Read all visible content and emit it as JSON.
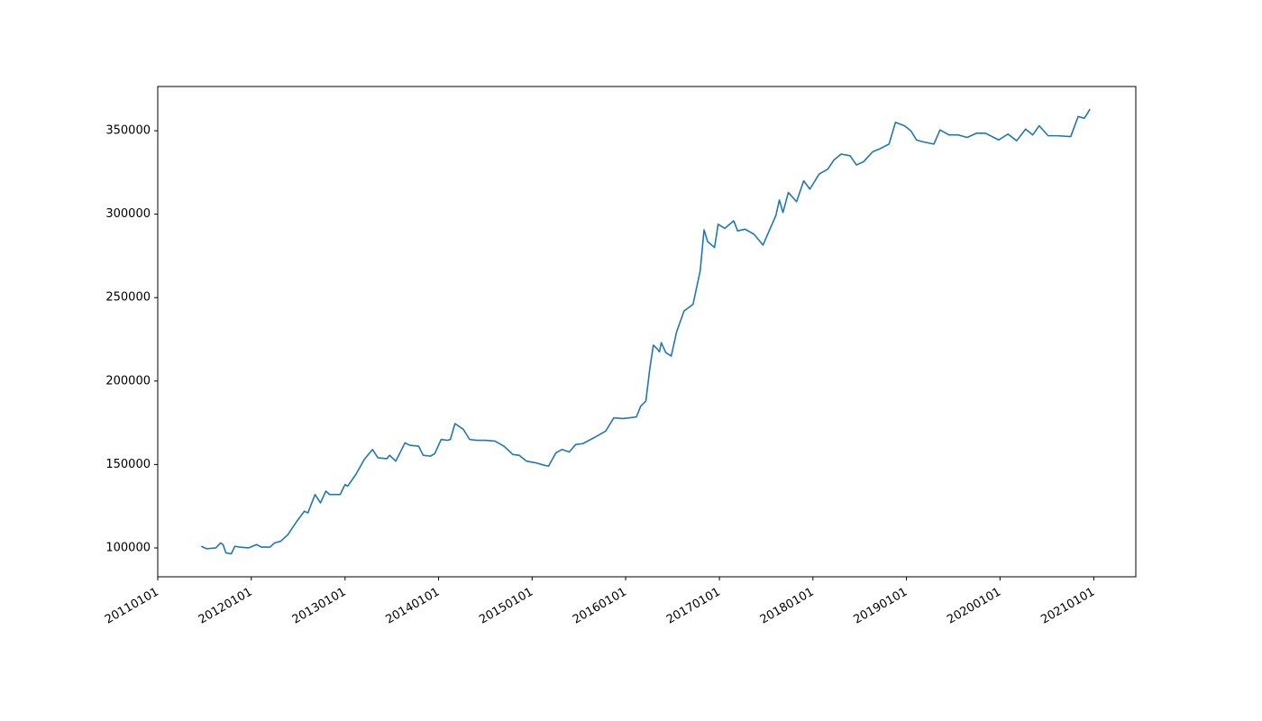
{
  "chart_data": {
    "type": "line",
    "x": [
      "2011-06-20",
      "2011-07-11",
      "2011-08-16",
      "2011-09-03",
      "2011-09-13",
      "2011-09-24",
      "2011-10-15",
      "2011-10-29",
      "2011-11-16",
      "2011-12-21",
      "2012-01-22",
      "2012-02-09",
      "2012-03-14",
      "2012-04-01",
      "2012-04-25",
      "2012-05-23",
      "2012-06-27",
      "2012-07-26",
      "2012-08-09",
      "2012-09-06",
      "2012-09-27",
      "2012-10-18",
      "2012-11-02",
      "2012-12-13",
      "2013-01-01",
      "2013-01-11",
      "2013-02-12",
      "2013-03-17",
      "2013-04-18",
      "2013-05-09",
      "2013-06-13",
      "2013-06-24",
      "2013-07-18",
      "2013-08-23",
      "2013-09-10",
      "2013-10-15",
      "2013-11-02",
      "2013-11-30",
      "2013-12-17",
      "2014-01-11",
      "2014-02-05",
      "2014-02-16",
      "2014-03-06",
      "2014-04-08",
      "2014-05-02",
      "2014-05-30",
      "2014-07-04",
      "2014-08-09",
      "2014-09-13",
      "2014-10-18",
      "2014-11-12",
      "2014-12-10",
      "2015-01-15",
      "2015-02-19",
      "2015-03-06",
      "2015-04-04",
      "2015-04-28",
      "2015-05-26",
      "2015-06-20",
      "2015-07-18",
      "2015-08-30",
      "2015-10-15",
      "2015-11-16",
      "2015-12-20",
      "2016-01-18",
      "2016-02-12",
      "2016-02-29",
      "2016-03-20",
      "2016-04-04",
      "2016-04-18",
      "2016-05-02",
      "2016-05-12",
      "2016-05-19",
      "2016-06-06",
      "2016-06-27",
      "2016-07-18",
      "2016-08-16",
      "2016-09-20",
      "2016-10-18",
      "2016-11-02",
      "2016-11-16",
      "2016-12-13",
      "2016-12-27",
      "2017-01-22",
      "2017-02-26",
      "2017-03-13",
      "2017-04-11",
      "2017-05-16",
      "2017-06-20",
      "2017-07-14",
      "2017-08-09",
      "2017-08-23",
      "2017-09-06",
      "2017-09-27",
      "2017-10-29",
      "2017-11-26",
      "2017-12-20",
      "2018-01-25",
      "2018-02-28",
      "2018-03-24",
      "2018-04-21",
      "2018-05-26",
      "2018-06-20",
      "2018-07-18",
      "2018-08-23",
      "2018-09-17",
      "2018-10-25",
      "2018-11-19",
      "2018-12-24",
      "2019-01-18",
      "2019-02-09",
      "2019-03-03",
      "2019-04-18",
      "2019-05-12",
      "2019-06-16",
      "2019-07-21",
      "2019-08-26",
      "2019-10-01",
      "2019-11-05",
      "2019-12-27",
      "2020-02-01",
      "2020-03-06",
      "2020-04-10",
      "2020-05-08",
      "2020-06-02",
      "2020-07-07",
      "2020-08-12",
      "2020-10-03",
      "2020-11-01",
      "2020-11-25",
      "2020-12-06",
      "2020-12-17"
    ],
    "series": [
      {
        "color": "#1f77b4",
        "values": [
          101000,
          99500,
          100000,
          103000,
          102000,
          97000,
          96500,
          101000,
          100500,
          100000,
          102000,
          100500,
          100500,
          103000,
          104000,
          108000,
          116000,
          122000,
          121000,
          132000,
          127000,
          134000,
          132000,
          132000,
          138000,
          137000,
          144000,
          153000,
          159000,
          154000,
          153500,
          155500,
          152000,
          163000,
          161500,
          161000,
          155500,
          155000,
          156500,
          165000,
          164500,
          165000,
          174500,
          171000,
          165000,
          164500,
          164500,
          164000,
          161000,
          156000,
          155500,
          152000,
          151000,
          149500,
          149000,
          157000,
          159000,
          157500,
          162000,
          162500,
          166000,
          170000,
          178000,
          177500,
          178000,
          178500,
          185000,
          188000,
          207000,
          221500,
          219500,
          217500,
          223000,
          217000,
          215000,
          229500,
          242000,
          246000,
          266000,
          290600,
          283600,
          280000,
          294000,
          291500,
          296000,
          290000,
          291000,
          288000,
          281500,
          290000,
          299000,
          308500,
          301000,
          313000,
          307500,
          320000,
          315000,
          324000,
          327000,
          332500,
          336000,
          335000,
          329500,
          331500,
          337500,
          339000,
          342000,
          355000,
          353000,
          350000,
          344500,
          343500,
          342000,
          350500,
          347500,
          347500,
          346000,
          348500,
          348500,
          344500,
          348000,
          344000,
          351000,
          347500,
          353000,
          347000,
          347000,
          346500,
          358500,
          357500,
          360000,
          363000
        ]
      }
    ],
    "xlim": [
      "2011-01-01",
      "2021-06-14"
    ],
    "xticks": [
      {
        "value": "2011-01-01",
        "label": "20110101"
      },
      {
        "value": "2012-01-01",
        "label": "20120101"
      },
      {
        "value": "2013-01-01",
        "label": "20130101"
      },
      {
        "value": "2014-01-01",
        "label": "20140101"
      },
      {
        "value": "2015-01-01",
        "label": "20150101"
      },
      {
        "value": "2016-01-01",
        "label": "20160101"
      },
      {
        "value": "2017-01-01",
        "label": "20170101"
      },
      {
        "value": "2018-01-01",
        "label": "20180101"
      },
      {
        "value": "2019-01-01",
        "label": "20190101"
      },
      {
        "value": "2020-01-01",
        "label": "20200101"
      },
      {
        "value": "2021-01-01",
        "label": "20210101"
      }
    ],
    "ylim": [
      82700,
      376500
    ],
    "yticks": [
      100000,
      150000,
      200000,
      250000,
      300000,
      350000
    ]
  }
}
